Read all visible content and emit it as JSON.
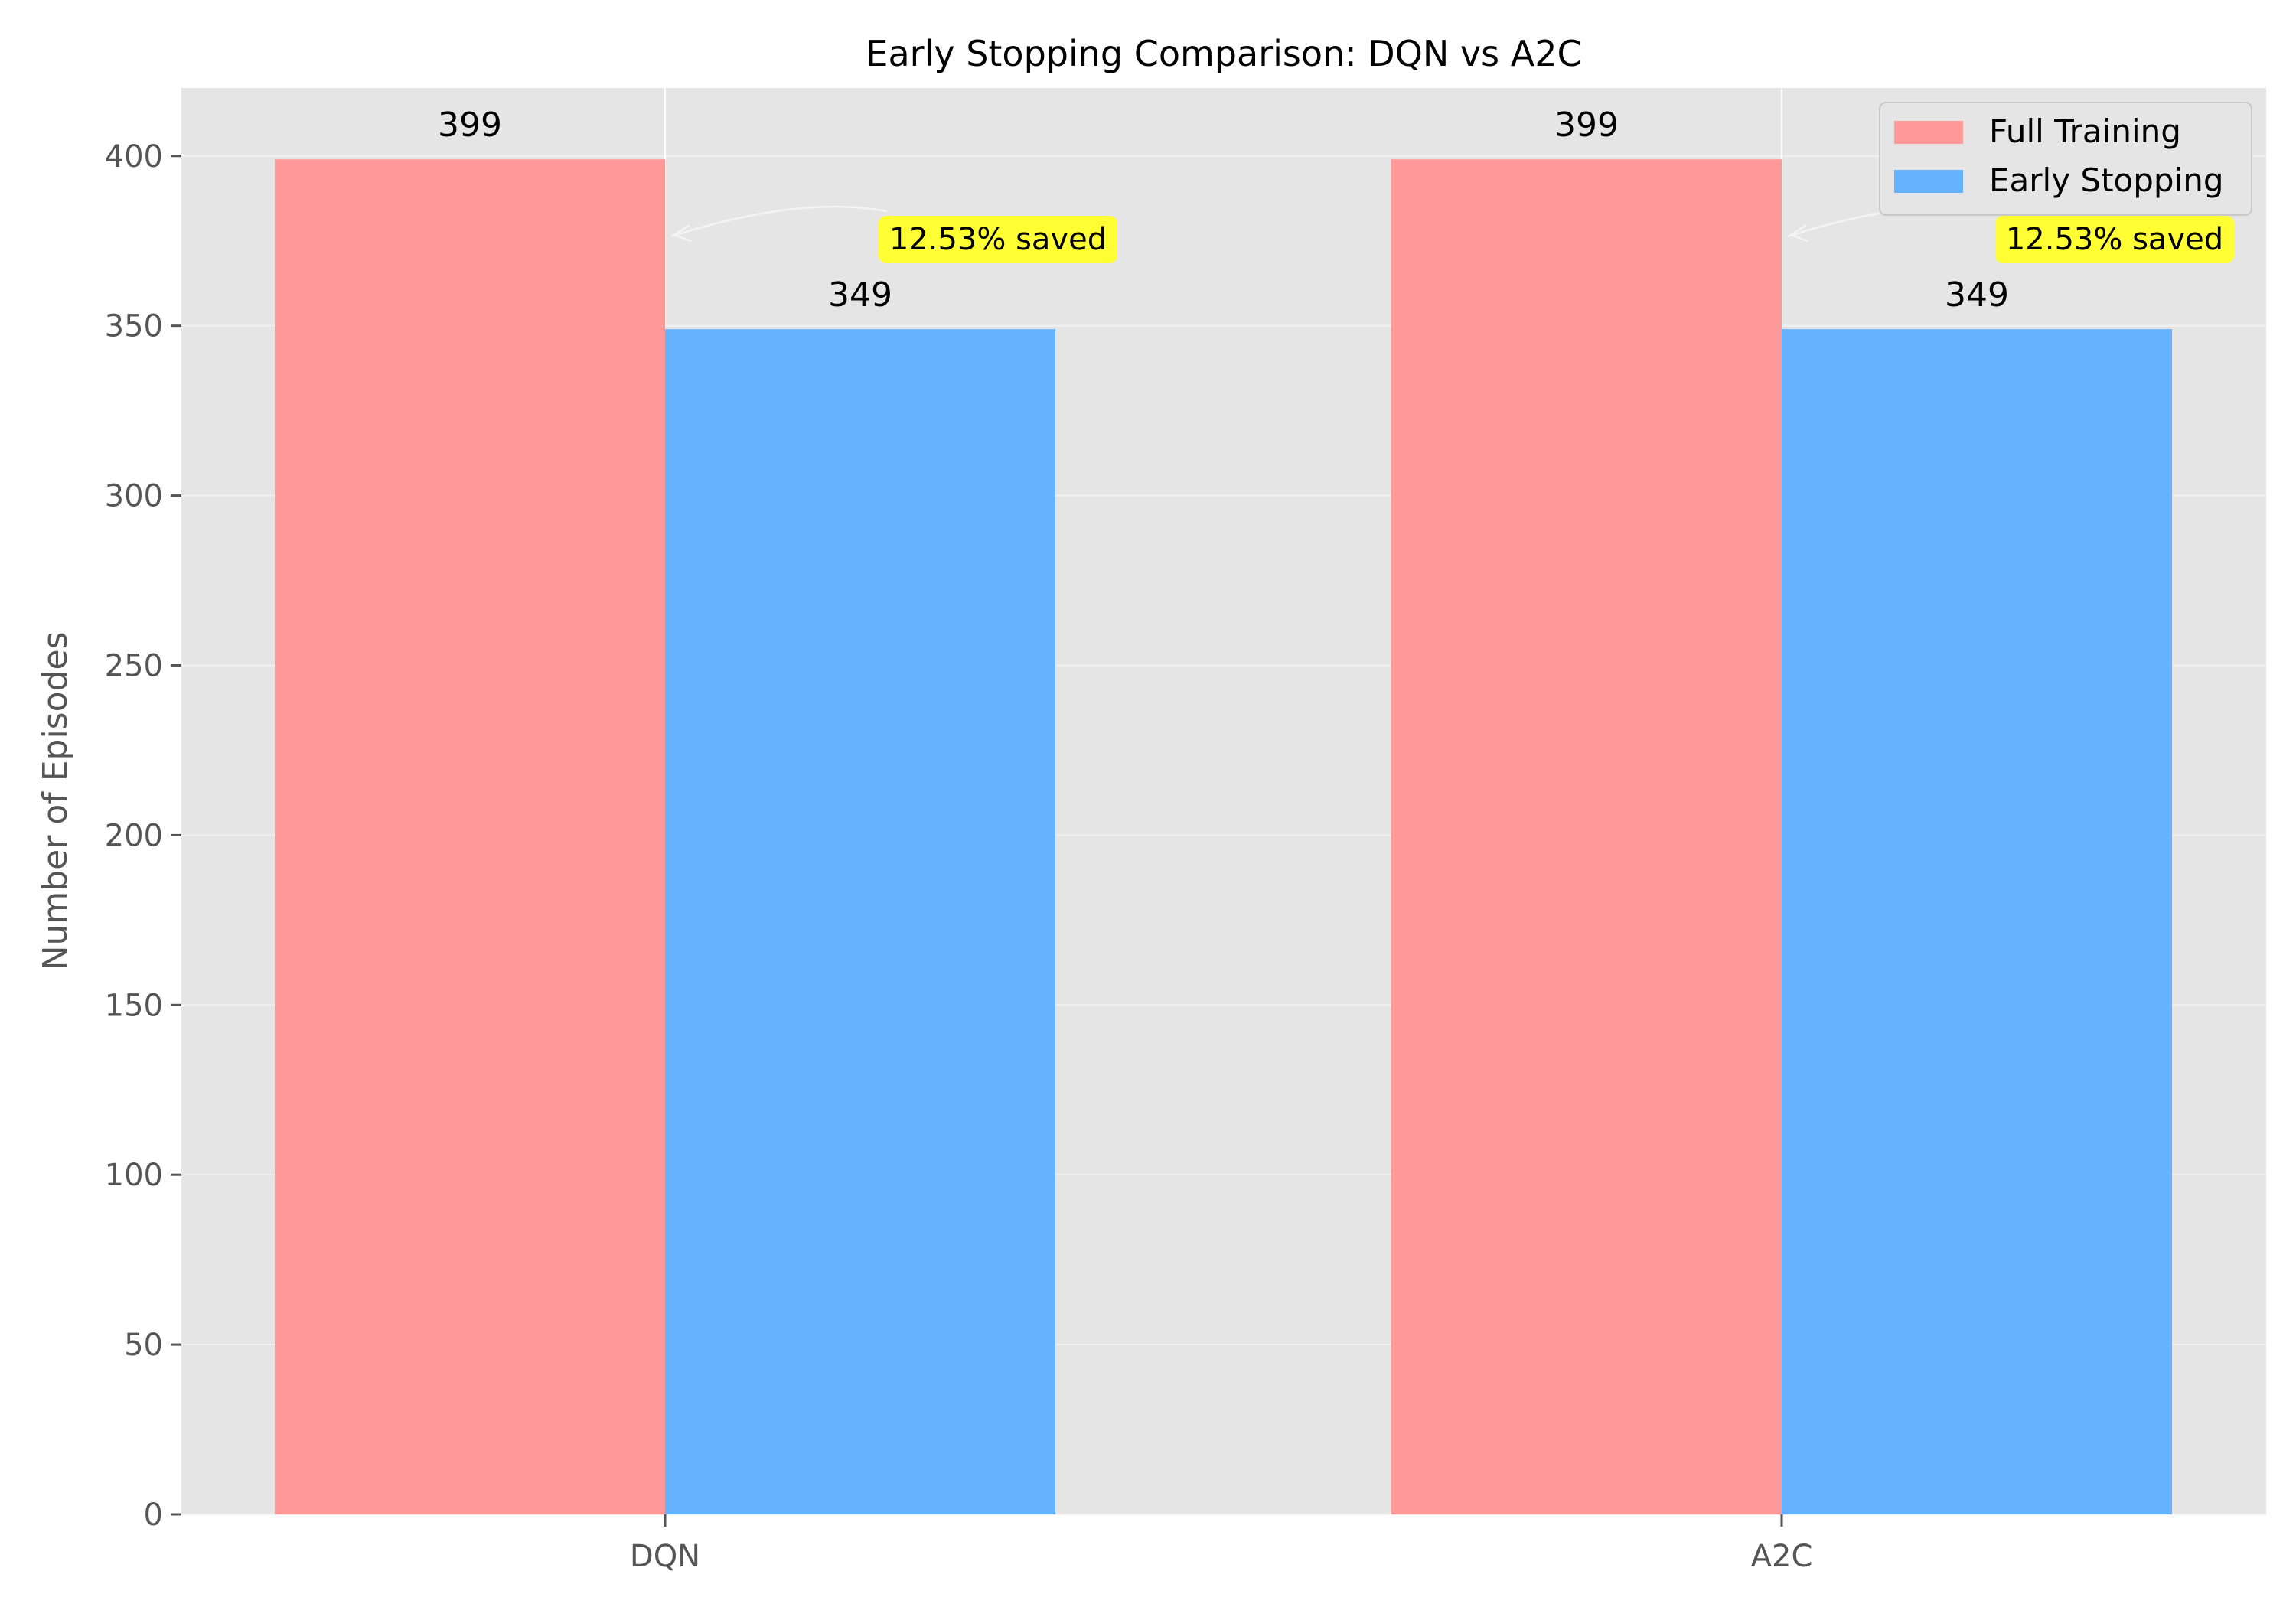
{
  "chart_data": {
    "type": "bar",
    "title": "Early Stopping Comparison: DQN vs A2C",
    "xlabel": "",
    "ylabel": "Number of Episodes",
    "categories": [
      "DQN",
      "A2C"
    ],
    "series": [
      {
        "name": "Full Training",
        "values": [
          399,
          399
        ],
        "color": "#ff9999"
      },
      {
        "name": "Early Stopping",
        "values": [
          349,
          349
        ],
        "color": "#66b2ff"
      }
    ],
    "ylim": [
      0,
      420
    ],
    "yticks": [
      0,
      50,
      100,
      150,
      200,
      250,
      300,
      350,
      400
    ],
    "ytick_labels": [
      "0",
      "50",
      "100",
      "150",
      "200",
      "250",
      "300",
      "350",
      "400"
    ],
    "value_labels": [
      [
        "399",
        "399"
      ],
      [
        "349",
        "349"
      ]
    ],
    "annotations": [
      {
        "category": "DQN",
        "text": "12.53% saved",
        "color": "#ffff33"
      },
      {
        "category": "A2C",
        "text": "12.53% saved",
        "color": "#ffff33"
      }
    ],
    "grid": true,
    "background": "#e5e5e5",
    "legend_position": "top-right"
  }
}
